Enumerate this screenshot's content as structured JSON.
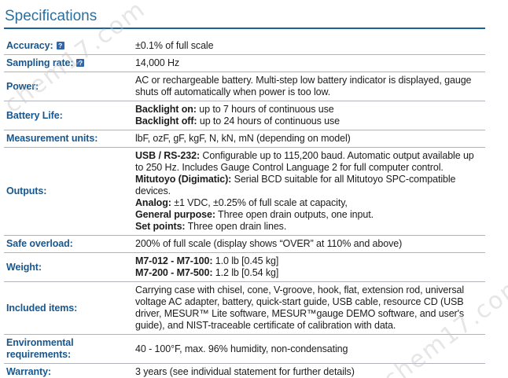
{
  "page": {
    "title": "Specifications"
  },
  "watermark": {
    "text": "chem17.com"
  },
  "icons": {
    "help": "?"
  },
  "colors": {
    "title": "#2b6f9f",
    "rule": "#1d6296",
    "label": "#17578f",
    "separator": "#b0b3ba",
    "bottom_border": "#161616",
    "help_icon_bg": "#3166ad",
    "text": "#1c1c1c"
  },
  "table": {
    "rows": [
      {
        "label": "Accuracy:",
        "help": true,
        "value": [
          [
            {
              "t": "±0.1% of full scale"
            }
          ]
        ]
      },
      {
        "label": "Sampling rate:",
        "help": true,
        "value": [
          [
            {
              "t": "14,000 Hz"
            }
          ]
        ]
      },
      {
        "label": "Power:",
        "value": [
          [
            {
              "t": "AC or rechargeable battery. Multi-step low battery indicator is displayed, gauge shuts off automatically when power is too low."
            }
          ]
        ]
      },
      {
        "label": "Battery Life:",
        "value": [
          [
            {
              "b": true,
              "t": "Backlight on:"
            },
            {
              "t": " up to 7 hours of continuous use"
            }
          ],
          [
            {
              "b": true,
              "t": "Backlight off:"
            },
            {
              "t": " up to 24 hours of continuous use"
            }
          ]
        ]
      },
      {
        "label": "Measurement units:",
        "value": [
          [
            {
              "t": "lbF, ozF, gF, kgF, N, kN, mN (depending on model)"
            }
          ]
        ]
      },
      {
        "label": "Outputs:",
        "value": [
          [
            {
              "b": true,
              "t": "USB / RS-232:"
            },
            {
              "t": " Configurable up to 115,200 baud. Automatic output available up to 250 Hz. Includes Gauge Control Language 2 for full computer control."
            }
          ],
          [
            {
              "b": true,
              "t": "Mitutoyo (Digimatic):"
            },
            {
              "t": " Serial BCD suitable for all Mitutoyo SPC-compatible devices."
            }
          ],
          [
            {
              "b": true,
              "t": "Analog:"
            },
            {
              "t": " ±1 VDC, ±0.25% of full scale at capacity,"
            }
          ],
          [
            {
              "b": true,
              "t": "General purpose:"
            },
            {
              "t": " Three open drain outputs, one input."
            }
          ],
          [
            {
              "b": true,
              "t": "Set points:"
            },
            {
              "t": " Three open drain lines."
            }
          ]
        ]
      },
      {
        "label": "Safe overload:",
        "value": [
          [
            {
              "t": "200% of full scale (display shows “OVER” at 110% and above)"
            }
          ]
        ]
      },
      {
        "label": "Weight:",
        "value": [
          [
            {
              "b": true,
              "t": "M7-012 - M7-100:"
            },
            {
              "t": " 1.0 lb [0.45 kg]"
            }
          ],
          [
            {
              "b": true,
              "t": "M7-200 - M7-500:"
            },
            {
              "t": " 1.2 lb [0.54 kg]"
            }
          ]
        ]
      },
      {
        "label": "Included items:",
        "value": [
          [
            {
              "t": "Carrying case with chisel, cone, V-groove, hook, flat, extension rod, universal voltage AC adapter, battery, quick-start guide, USB cable, resource CD (USB driver, MESUR™ Lite software, MESUR™gauge DEMO software, and user's guide), and NIST-traceable certificate of calibration with data."
            }
          ]
        ]
      },
      {
        "label": "Environmental requirements:",
        "value": [
          [
            {
              "t": "40 - 100°F, max. 96% humidity, non-condensating"
            }
          ]
        ]
      },
      {
        "label": "Warranty:",
        "value": [
          [
            {
              "t": "3 years (see individual statement for further details)"
            }
          ]
        ]
      }
    ]
  }
}
